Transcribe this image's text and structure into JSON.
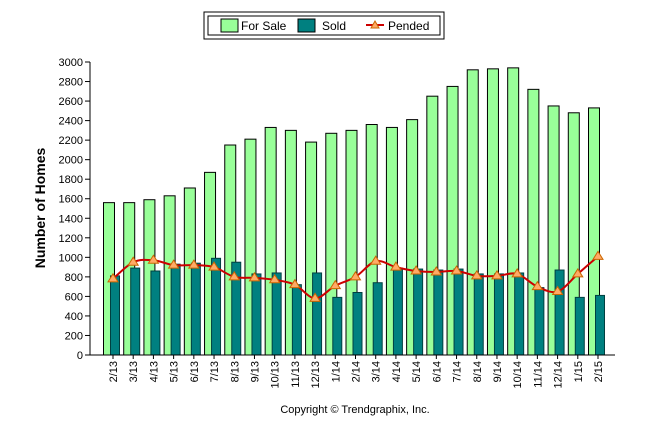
{
  "chart_data": {
    "type": "bar",
    "title": "",
    "xlabel": "",
    "ylabel": "Number of Homes",
    "ylim": [
      0,
      3000
    ],
    "ytick_step": 200,
    "grid": false,
    "legend_position": "top-center",
    "categories": [
      "2/13",
      "3/13",
      "4/13",
      "5/13",
      "6/13",
      "7/13",
      "8/13",
      "9/13",
      "10/13",
      "11/13",
      "12/13",
      "1/14",
      "2/14",
      "3/14",
      "4/14",
      "5/14",
      "6/14",
      "7/14",
      "8/14",
      "9/14",
      "10/14",
      "11/14",
      "12/14",
      "1/15",
      "2/15"
    ],
    "series": [
      {
        "name": "For Sale",
        "kind": "bar",
        "color": "#99ff99",
        "values": [
          1560,
          1560,
          1590,
          1630,
          1710,
          1870,
          2150,
          2210,
          2330,
          2300,
          2180,
          2270,
          2300,
          2360,
          2330,
          2410,
          2650,
          2750,
          2920,
          2930,
          2940,
          2720,
          2550,
          2480,
          2530
        ]
      },
      {
        "name": "Sold",
        "kind": "bar",
        "color": "#008080",
        "values": [
          810,
          890,
          860,
          930,
          940,
          990,
          950,
          830,
          840,
          720,
          840,
          590,
          640,
          740,
          890,
          880,
          870,
          880,
          830,
          830,
          840,
          690,
          870,
          590,
          610
        ]
      },
      {
        "name": "Pended",
        "kind": "line",
        "color": "#cc0000",
        "marker_color": "#ffaa66",
        "values": [
          780,
          950,
          970,
          920,
          920,
          900,
          800,
          790,
          770,
          720,
          580,
          710,
          800,
          960,
          900,
          860,
          850,
          860,
          810,
          810,
          830,
          700,
          650,
          830,
          1010
        ]
      }
    ]
  },
  "footer": {
    "copyright": "Copyright © Trendgraphix, Inc."
  }
}
